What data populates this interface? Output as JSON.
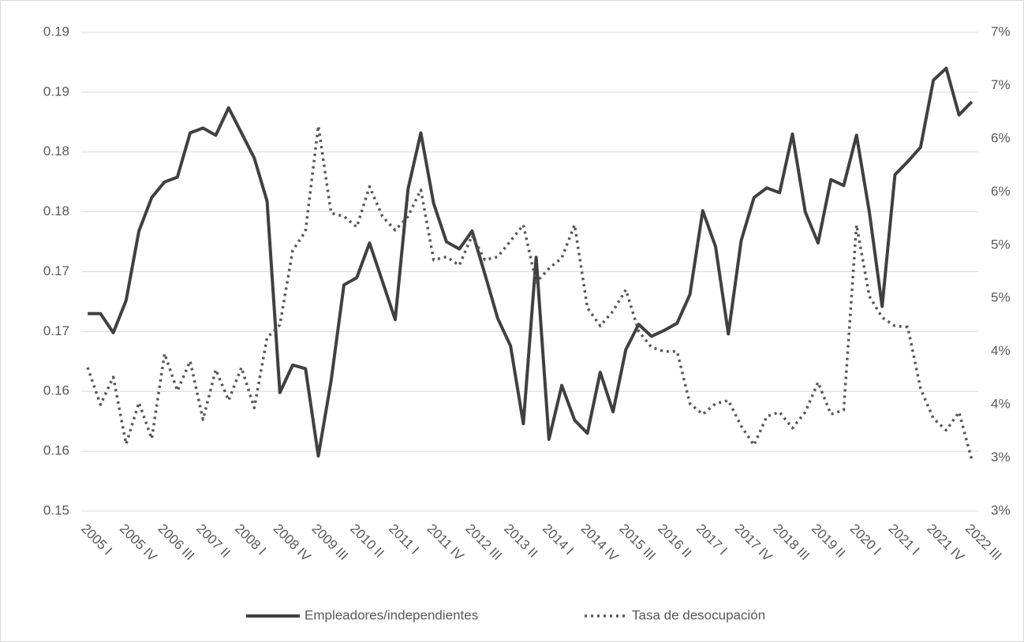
{
  "chart_data": {
    "type": "line",
    "categories": [
      "2005 I",
      null,
      null,
      "2005 IV",
      null,
      null,
      "2006 III",
      null,
      null,
      "2007 II",
      null,
      null,
      "2008 I",
      null,
      null,
      "2008 IV",
      null,
      null,
      "2009 III",
      null,
      null,
      "2010 II",
      null,
      null,
      "2011 I",
      null,
      null,
      "2011 IV",
      null,
      null,
      "2012 III",
      null,
      null,
      "2013 II",
      null,
      null,
      "2014 I",
      null,
      null,
      "2014 IV",
      null,
      null,
      "2015 III",
      null,
      null,
      "2016 II",
      null,
      null,
      "2017 I",
      null,
      null,
      "2017 IV",
      null,
      null,
      "2018 III",
      null,
      null,
      "2019 II",
      null,
      null,
      "2020 I",
      null,
      null,
      "2021 I",
      null,
      null,
      "2021 IV",
      null,
      null,
      "2022 III"
    ],
    "series": [
      {
        "name": "Empleadores/independientes",
        "color": "#404040",
        "dash": "solid",
        "values": [
          0.1665,
          0.1665,
          0.1649,
          0.1676,
          0.1734,
          0.1762,
          0.1775,
          0.1779,
          0.1816,
          0.182,
          0.1814,
          0.1837,
          0.1816,
          0.1795,
          0.1759,
          0.1599,
          0.1622,
          0.1619,
          0.1546,
          0.1609,
          0.1689,
          0.1695,
          0.1724,
          0.1692,
          0.166,
          0.1769,
          0.1816,
          0.1757,
          0.1725,
          0.1719,
          0.1734,
          0.1698,
          0.1661,
          0.1638,
          0.1573,
          0.1712,
          0.156,
          0.1605,
          0.1576,
          0.1565,
          0.1616,
          0.1583,
          0.1635,
          0.1656,
          0.1646,
          0.1651,
          0.1657,
          0.1681,
          0.1751,
          0.1721,
          0.1648,
          0.1726,
          0.1762,
          0.177,
          0.1766,
          0.1815,
          0.175,
          0.1724,
          0.1777,
          0.1772,
          0.1814,
          0.175,
          0.1671,
          0.1781,
          0.1792,
          0.1804,
          0.186,
          0.187,
          0.1831,
          0.1842
        ]
      },
      {
        "name": "Tasa de desocupación",
        "color": "#595959",
        "dash": "dotted",
        "axis": "y2",
        "values": [
          3.85,
          3.5,
          3.76,
          3.13,
          3.52,
          3.18,
          3.98,
          3.63,
          3.91,
          3.36,
          3.83,
          3.54,
          3.85,
          3.47,
          4.13,
          4.25,
          4.95,
          5.13,
          6.12,
          5.3,
          5.27,
          5.17,
          5.55,
          5.27,
          5.14,
          5.27,
          5.52,
          4.86,
          4.89,
          4.81,
          5.09,
          4.86,
          4.89,
          5.04,
          5.19,
          4.65,
          4.78,
          4.88,
          5.19,
          4.41,
          4.24,
          4.38,
          4.58,
          4.19,
          4.04,
          4.0,
          4.0,
          3.51,
          3.41,
          3.51,
          3.54,
          3.3,
          3.12,
          3.39,
          3.43,
          3.28,
          3.43,
          3.71,
          3.41,
          3.45,
          5.19,
          4.52,
          4.32,
          4.24,
          4.23,
          3.65,
          3.37,
          3.26,
          3.43,
          2.98
        ]
      }
    ],
    "ylim": [
      0.15,
      0.19
    ],
    "yticks": [
      0.15,
      {
        "value": 0.155,
        "label": "0.16"
      },
      0.16,
      {
        "value": 0.165,
        "label": "0.17"
      },
      0.17,
      {
        "value": 0.175,
        "label": "0.18"
      },
      0.18,
      {
        "value": 0.185,
        "label": "0.19"
      },
      0.19
    ],
    "y2lim": [
      2.5,
      7
    ],
    "y2ticks": [
      {
        "value": 2.5,
        "label": "3%"
      },
      {
        "value": 3,
        "label": "3%"
      },
      {
        "value": 3.5,
        "label": "4%"
      },
      {
        "value": 4,
        "label": "4%"
      },
      {
        "value": 4.5,
        "label": "5%"
      },
      {
        "value": 5,
        "label": "5%"
      },
      {
        "value": 5.5,
        "label": "6%"
      },
      {
        "value": 6,
        "label": "6%"
      },
      {
        "value": 6.5,
        "label": "7%"
      },
      {
        "value": 7,
        "label": "7%"
      }
    ],
    "grid": true,
    "legend": "bottom"
  }
}
